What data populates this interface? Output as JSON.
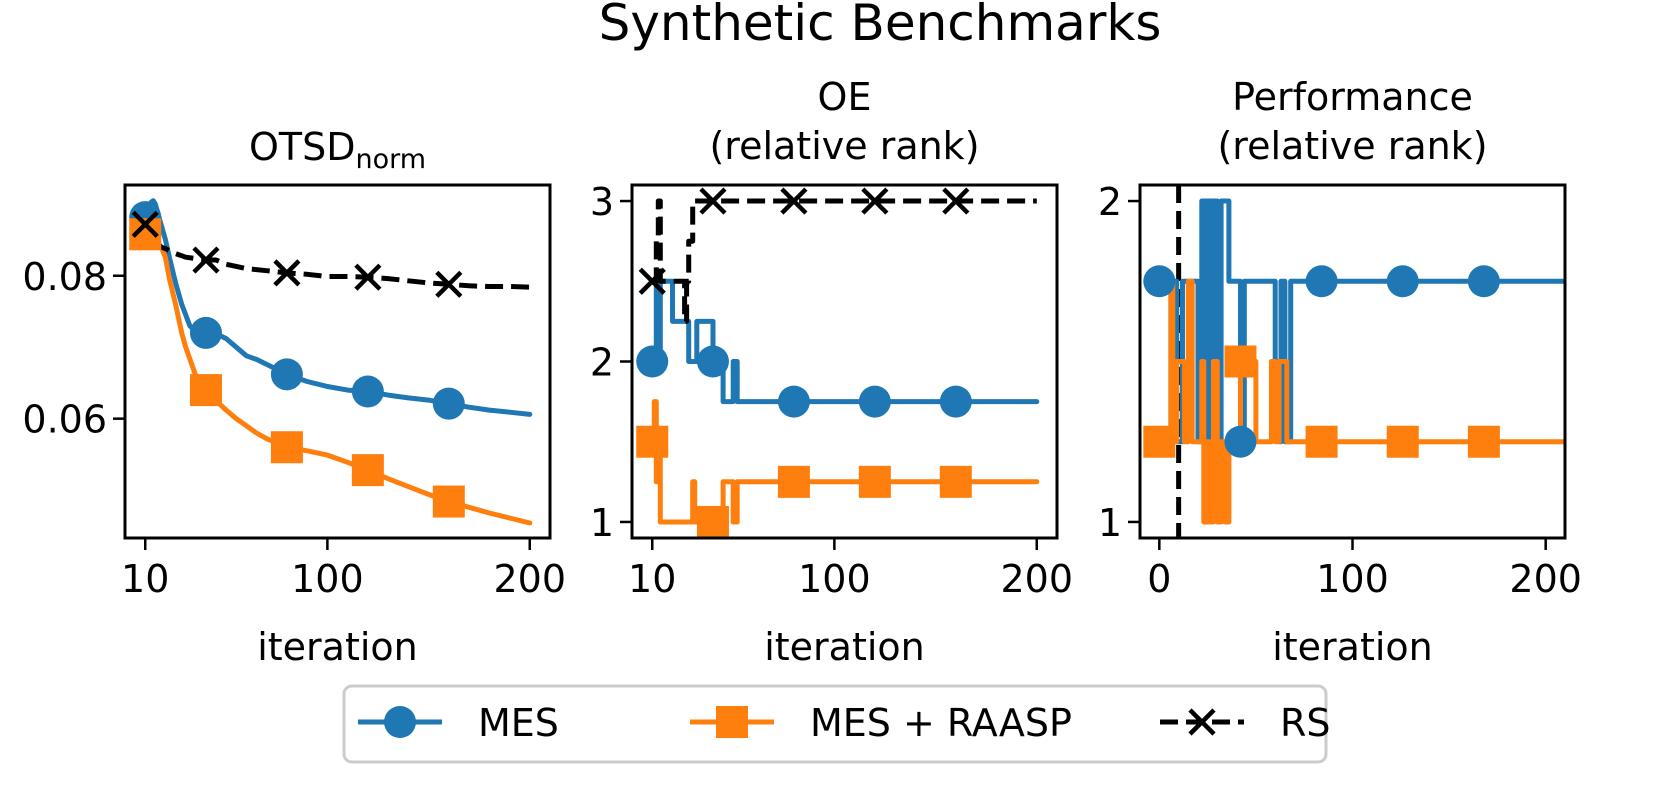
{
  "figure_title": "Synthetic Benchmarks",
  "colors": {
    "mes": "#1f77b4",
    "raasp": "#ff7f0e",
    "rs": "#000000",
    "vline": "#000000"
  },
  "legend": [
    {
      "label": "MES",
      "marker": "circle",
      "color": "#1f77b4",
      "dash": false
    },
    {
      "label": "MES + RAASP",
      "marker": "square",
      "color": "#ff7f0e",
      "dash": false
    },
    {
      "label": "RS",
      "marker": "x",
      "color": "#000000",
      "dash": true
    }
  ],
  "chart_data": [
    {
      "type": "line",
      "title_main": "OTSD",
      "title_sub": "norm",
      "xlabel": "iteration",
      "xlim": [
        0,
        210
      ],
      "ylim": [
        0.0433,
        0.0927
      ],
      "xticks": [
        10,
        100,
        200
      ],
      "xtick_labels": [
        "10",
        "100",
        "200"
      ],
      "yticks": [
        0.06,
        0.08
      ],
      "ytick_labels": [
        "0.06",
        "0.08"
      ],
      "series": [
        {
          "name": "MES",
          "color": "#1f77b4",
          "marker": "circle",
          "dash": false,
          "x": [
            10,
            11,
            12,
            13,
            14,
            15,
            16,
            17,
            18,
            20,
            22,
            25,
            28,
            32,
            35,
            40,
            45,
            50,
            55,
            60,
            65,
            70,
            80,
            90,
            100,
            110,
            120,
            130,
            140,
            150,
            160,
            170,
            180,
            190,
            200
          ],
          "y": [
            0.0882,
            0.0885,
            0.0895,
            0.0903,
            0.0905,
            0.09,
            0.089,
            0.088,
            0.087,
            0.085,
            0.0825,
            0.079,
            0.076,
            0.073,
            0.0722,
            0.072,
            0.0719,
            0.0712,
            0.07,
            0.0688,
            0.0683,
            0.0676,
            0.0662,
            0.0652,
            0.0645,
            0.064,
            0.0638,
            0.0633,
            0.0629,
            0.0626,
            0.0621,
            0.0616,
            0.0612,
            0.0609,
            0.0606
          ]
        },
        {
          "name": "MES + RAASP",
          "color": "#ff7f0e",
          "marker": "square",
          "dash": false,
          "x": [
            10,
            12,
            15,
            18,
            20,
            22,
            25,
            28,
            30,
            35,
            40,
            45,
            50,
            55,
            60,
            65,
            70,
            80,
            90,
            100,
            110,
            120,
            130,
            140,
            150,
            160,
            170,
            180,
            190,
            200
          ],
          "y": [
            0.0858,
            0.0855,
            0.085,
            0.084,
            0.0825,
            0.0795,
            0.076,
            0.072,
            0.07,
            0.066,
            0.064,
            0.0625,
            0.0612,
            0.06,
            0.059,
            0.058,
            0.0572,
            0.056,
            0.0555,
            0.0549,
            0.0539,
            0.0528,
            0.0516,
            0.0505,
            0.0494,
            0.0484,
            0.0476,
            0.0468,
            0.0461,
            0.0454
          ]
        },
        {
          "name": "RS",
          "color": "#000000",
          "marker": "x",
          "dash": true,
          "x": [
            10,
            11,
            12,
            13,
            14,
            15,
            16,
            18,
            20,
            25,
            30,
            35,
            40,
            45,
            50,
            60,
            70,
            80,
            90,
            100,
            110,
            120,
            130,
            140,
            150,
            160,
            170,
            180,
            190,
            200
          ],
          "y": [
            0.0872,
            0.0868,
            0.086,
            0.0852,
            0.0858,
            0.085,
            0.0845,
            0.084,
            0.0838,
            0.0831,
            0.0826,
            0.0824,
            0.0822,
            0.0822,
            0.0816,
            0.081,
            0.0807,
            0.0804,
            0.0802,
            0.0799,
            0.0799,
            0.0798,
            0.0796,
            0.0793,
            0.079,
            0.0788,
            0.0786,
            0.0785,
            0.0785,
            0.0784
          ]
        }
      ]
    },
    {
      "type": "line",
      "title_lines": [
        "OE",
        "(relative rank)"
      ],
      "xlabel": "iteration",
      "xlim": [
        0,
        210
      ],
      "ylim": [
        0.9,
        3.1
      ],
      "xticks": [
        10,
        100,
        200
      ],
      "xtick_labels": [
        "10",
        "100",
        "200"
      ],
      "yticks": [
        1,
        2,
        3
      ],
      "ytick_labels": [
        "1",
        "2",
        "3"
      ],
      "series": [
        {
          "name": "MES",
          "color": "#1f77b4",
          "marker": "circle",
          "dash": false,
          "x": [
            10,
            12,
            12,
            13,
            13,
            14,
            14,
            15,
            15,
            20,
            20,
            28,
            28,
            32,
            32,
            40,
            40,
            45,
            45,
            50,
            50,
            52,
            52,
            200
          ],
          "y": [
            2,
            2,
            2.5,
            2.5,
            2,
            2,
            2.5,
            2.5,
            2.5,
            2.5,
            2.25,
            2.25,
            2,
            2,
            2.25,
            2.25,
            2,
            2,
            1.75,
            1.75,
            2,
            2,
            1.75,
            1.75
          ]
        },
        {
          "name": "MES + RAASP",
          "color": "#ff7f0e",
          "marker": "square",
          "dash": false,
          "x": [
            10,
            11,
            11,
            12,
            12,
            13,
            13,
            14,
            14,
            17,
            17,
            30,
            30,
            31,
            31,
            40,
            40,
            45,
            45,
            50,
            50,
            52,
            52,
            200
          ],
          "y": [
            1.5,
            1.5,
            1.75,
            1.75,
            1.25,
            1.25,
            1.5,
            1.5,
            1,
            1,
            1,
            1,
            1.25,
            1.25,
            1,
            1,
            1,
            1,
            1.25,
            1.25,
            1,
            1,
            1.25,
            1.25
          ]
        },
        {
          "name": "RS",
          "color": "#000000",
          "marker": "x",
          "dash": true,
          "x": [
            10,
            12,
            12,
            13,
            13,
            14,
            14,
            15,
            15,
            26,
            26,
            27,
            27,
            28,
            28,
            29,
            29,
            30,
            30,
            31,
            31,
            200
          ],
          "y": [
            2.5,
            2.5,
            2.75,
            2.75,
            3,
            3,
            2.5,
            2.5,
            2.5,
            2.5,
            2.25,
            2.25,
            2.5,
            2.5,
            2.75,
            2.75,
            2.75,
            2.75,
            3,
            3,
            3,
            3
          ]
        }
      ]
    },
    {
      "type": "line",
      "title_lines": [
        "Performance",
        "(relative rank)"
      ],
      "xlabel": "iteration",
      "xlim": [
        -10,
        210
      ],
      "ylim": [
        0.95,
        2.05
      ],
      "xticks": [
        0,
        100,
        200
      ],
      "xtick_labels": [
        "0",
        "100",
        "200"
      ],
      "yticks": [
        1,
        2
      ],
      "ytick_labels": [
        "1",
        "2"
      ],
      "vline_x": 10,
      "series": [
        {
          "name": "MES",
          "color": "#1f77b4",
          "marker": "circle",
          "dash": false,
          "x": [
            0,
            6,
            6,
            7,
            7,
            9,
            9,
            12,
            12,
            20,
            20,
            22,
            22,
            24,
            24,
            25,
            25,
            27,
            27,
            28,
            28,
            30,
            30,
            32,
            32,
            36,
            36,
            42,
            42,
            44,
            44,
            60,
            60,
            62,
            62,
            63,
            63,
            65,
            65,
            68,
            68,
            70,
            70,
            210
          ],
          "y": [
            1.75,
            1.75,
            1.25,
            1.25,
            1.75,
            1.75,
            1.25,
            1.25,
            1.75,
            1.75,
            1.25,
            1.25,
            2,
            2,
            1.25,
            1.25,
            2,
            2,
            1.25,
            1.25,
            2,
            2,
            1.25,
            1.25,
            2,
            2,
            1.75,
            1.75,
            1.25,
            1.25,
            1.75,
            1.75,
            1.5,
            1.5,
            1.25,
            1.25,
            1.75,
            1.75,
            1.25,
            1.25,
            1.75,
            1.75,
            1.75,
            1.75
          ]
        },
        {
          "name": "MES + RAASP",
          "color": "#ff7f0e",
          "marker": "square",
          "dash": false,
          "x": [
            0,
            6,
            6,
            7,
            7,
            9,
            9,
            13,
            13,
            15,
            15,
            17,
            17,
            22,
            22,
            23,
            23,
            24,
            24,
            25,
            25,
            26,
            26,
            27,
            27,
            28,
            28,
            30,
            30,
            32,
            32,
            34,
            34,
            36,
            36,
            42,
            42,
            50,
            50,
            58,
            58,
            60,
            60,
            62,
            62,
            66,
            66,
            80,
            80,
            210
          ],
          "y": [
            1.25,
            1.25,
            1.75,
            1.75,
            1.25,
            1.25,
            1.5,
            1.5,
            1.25,
            1.25,
            1.75,
            1.75,
            1.25,
            1.25,
            1.5,
            1.5,
            1,
            1,
            1.25,
            1.25,
            1,
            1,
            1.25,
            1.25,
            1,
            1,
            1.5,
            1.5,
            1,
            1,
            1.25,
            1.25,
            1,
            1,
            1.25,
            1.25,
            1.5,
            1.5,
            1.25,
            1.25,
            1.5,
            1.5,
            1.25,
            1.25,
            1.5,
            1.5,
            1.25,
            1.25,
            1.25,
            1.25
          ]
        }
      ]
    }
  ]
}
